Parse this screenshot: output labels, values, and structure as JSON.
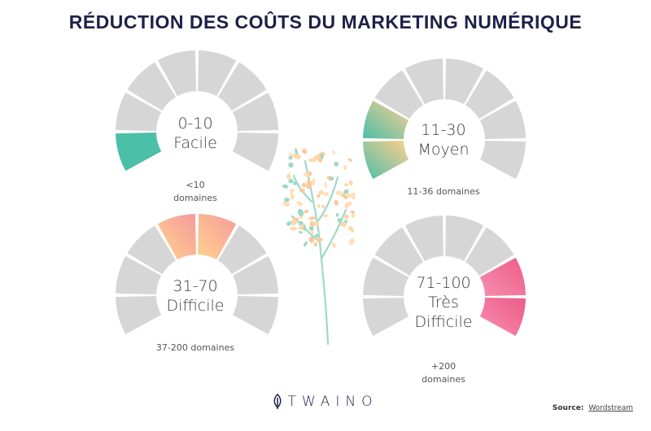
{
  "title": "RÉDUCTION DES COÛTS DU MARKETING NUMÉRIQUE",
  "colors": {
    "segment_inactive": "#d6d6d6",
    "easy": "#4bbfa8",
    "medium_start": "#4bbfa8",
    "medium_end": "#ffcf8e",
    "difficult_start": "#ffd38d",
    "difficult_end": "#f59a9c",
    "very_difficult_start": "#f78fb0",
    "very_difficult_end": "#ec5b88",
    "title": "#1d2147"
  },
  "gauges": [
    {
      "range": "0-10",
      "level": "Facile",
      "note_lines": [
        "<10",
        "domaines"
      ],
      "active_segments": [
        0
      ]
    },
    {
      "range": "11-30",
      "level": "Moyen",
      "note_lines": [
        "11-36 domaines"
      ],
      "active_segments": [
        0,
        1
      ]
    },
    {
      "range": "31-70",
      "level": "Difficile",
      "note_lines": [
        "37-200 domaines"
      ],
      "active_segments": [
        3,
        4
      ]
    },
    {
      "range": "71-100",
      "level_lines": [
        "Très",
        "Difficile"
      ],
      "note_lines": [
        "+200",
        "domaines"
      ],
      "active_segments": [
        6,
        7
      ]
    }
  ],
  "logo": {
    "text": "TWAINO",
    "icon": "leaf-icon",
    "end_icon": "bracket-icon"
  },
  "source": {
    "label": "Source:",
    "link": "Wordstream"
  }
}
